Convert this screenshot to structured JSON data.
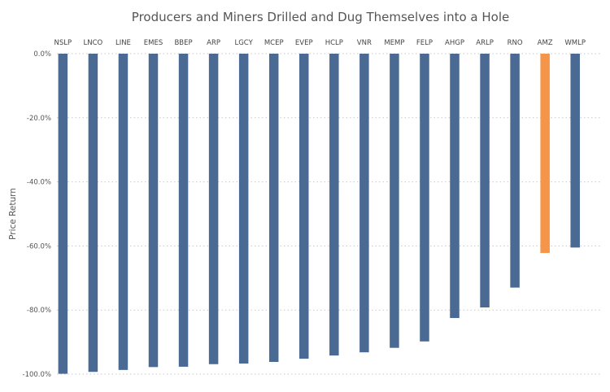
{
  "chart_data": {
    "type": "bar",
    "title": "Producers and Miners Drilled and Dug Themselves into a Hole",
    "xlabel": "",
    "ylabel": "Price Return",
    "ylim": [
      -100,
      0
    ],
    "yticks": [
      0,
      -20,
      -40,
      -60,
      -80,
      -100
    ],
    "ytick_labels": [
      "0.0%",
      "-20.0%",
      "-40.0%",
      "-60.0%",
      "-80.0%",
      "-100.0%"
    ],
    "x_axis_position": "top",
    "grid": "horizontal dotted",
    "categories": [
      "NSLP",
      "LNCO",
      "LINE",
      "EMES",
      "BBEP",
      "ARP",
      "LGCY",
      "MCEP",
      "EVEP",
      "HCLP",
      "VNR",
      "MEMP",
      "FELP",
      "AHGP",
      "ARLP",
      "RNO",
      "AMZ",
      "WMLP"
    ],
    "values": [
      -99.9,
      -99.3,
      -98.7,
      -97.8,
      -97.7,
      -96.9,
      -96.7,
      -96.2,
      -95.2,
      -94.2,
      -93.2,
      -91.8,
      -89.8,
      -82.5,
      -79.2,
      -73.0,
      -62.2,
      -60.5
    ],
    "colors": {
      "default": "#4a6a93",
      "highlight": "#f4954a",
      "highlight_category": "AMZ"
    }
  }
}
